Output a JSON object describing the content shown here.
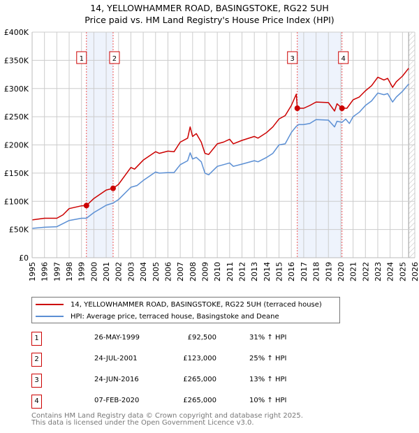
{
  "title_line1": "14, YELLOWHAMMER ROAD, BASINGSTOKE, RG22 5UH",
  "title_line2": "Price paid vs. HM Land Registry's House Price Index (HPI)",
  "colors": {
    "price": "#cc0000",
    "hpi": "#5b8fd4",
    "shade": "#eef3fc",
    "grid": "#cccccc"
  },
  "chart_data": {
    "type": "line",
    "title": "Price paid vs. HM Land Registry's House Price Index (HPI)",
    "xlim": [
      1995,
      2026
    ],
    "ylim": [
      0,
      400000
    ],
    "grid": true,
    "y_ticks": [
      "£0",
      "£50K",
      "£100K",
      "£150K",
      "£200K",
      "£250K",
      "£300K",
      "£350K",
      "£400K"
    ],
    "x_ticks": [
      "1995",
      "1996",
      "1997",
      "1998",
      "1999",
      "2000",
      "2001",
      "2002",
      "2003",
      "2004",
      "2005",
      "2006",
      "2007",
      "2008",
      "2009",
      "2010",
      "2011",
      "2012",
      "2013",
      "2014",
      "2015",
      "2016",
      "2017",
      "2018",
      "2019",
      "2020",
      "2021",
      "2022",
      "2023",
      "2024",
      "2025",
      "2026"
    ],
    "series": [
      {
        "name": "14, YELLOWHAMMER ROAD, BASINGSTOKE, RG22 5UH (terraced house)",
        "x": [
          1995,
          1996,
          1997,
          1997.5,
          1998,
          1999,
          1999.4,
          2000,
          2001,
          2001.56,
          2002,
          2003,
          2003.3,
          2004,
          2005,
          2005.3,
          2006,
          2006.5,
          2007,
          2007.6,
          2007.8,
          2008,
          2008.3,
          2008.7,
          2009,
          2009.3,
          2010,
          2010.5,
          2011,
          2011.3,
          2012,
          2013,
          2013.3,
          2014,
          2014.5,
          2015,
          2015.5,
          2016,
          2016.4,
          2016.48,
          2017,
          2017.5,
          2018,
          2019,
          2019.5,
          2019.7,
          2020.1,
          2020.5,
          2021,
          2021.5,
          2022,
          2022.5,
          2023,
          2023.5,
          2023.8,
          2024.2,
          2024.5,
          2025,
          2025.5
        ],
        "y": [
          67,
          70,
          70,
          76,
          87,
          92,
          92.5,
          105,
          120,
          123,
          130,
          160,
          157,
          173,
          188,
          185,
          189,
          188,
          205,
          212,
          232,
          215,
          220,
          205,
          185,
          183,
          202,
          205,
          210,
          202,
          208,
          215,
          212,
          222,
          232,
          246,
          252,
          270,
          290,
          265,
          265,
          270,
          276,
          275,
          260,
          273,
          265,
          265,
          280,
          285,
          296,
          305,
          320,
          315,
          318,
          302,
          312,
          322,
          336
        ]
      },
      {
        "name": "HPI: Average price, terraced house, Basingstoke and Deane",
        "x": [
          1995,
          1996,
          1997,
          1998,
          1999,
          1999.4,
          2000,
          2001,
          2001.56,
          2002,
          2003,
          2003.5,
          2004,
          2005,
          2005.3,
          2006,
          2006.5,
          2007,
          2007.6,
          2007.8,
          2008,
          2008.3,
          2008.7,
          2009,
          2009.3,
          2010,
          2010.5,
          2011,
          2011.3,
          2012,
          2013,
          2013.3,
          2014,
          2014.5,
          2015,
          2015.5,
          2016,
          2016.4,
          2016.6,
          2017,
          2017.5,
          2018,
          2019,
          2019.5,
          2019.7,
          2020.1,
          2020.4,
          2020.7,
          2021,
          2021.5,
          2022,
          2022.5,
          2023,
          2023.5,
          2023.8,
          2024.2,
          2024.5,
          2025,
          2025.5
        ],
        "y": [
          52,
          54,
          55,
          66,
          70,
          70,
          80,
          93,
          97,
          103,
          125,
          128,
          137,
          152,
          150,
          151,
          151,
          165,
          172,
          186,
          175,
          178,
          170,
          150,
          147,
          162,
          165,
          168,
          162,
          166,
          172,
          170,
          178,
          185,
          200,
          202,
          222,
          233,
          236,
          236,
          238,
          245,
          244,
          232,
          242,
          240,
          246,
          238,
          250,
          258,
          270,
          278,
          292,
          289,
          291,
          276,
          285,
          295,
          308
        ]
      }
    ],
    "sales": [
      {
        "label": "1",
        "x": 1999.4,
        "y": 92.5
      },
      {
        "label": "2",
        "x": 2001.56,
        "y": 123
      },
      {
        "label": "3",
        "x": 2016.48,
        "y": 265
      },
      {
        "label": "4",
        "x": 2020.1,
        "y": 265
      }
    ],
    "shaded_ranges": [
      [
        1999.4,
        2001.56
      ],
      [
        2016.48,
        2020.1
      ]
    ],
    "y_units": "thousand GBP",
    "legend_placement": "below"
  },
  "legend": {
    "price_label": "14, YELLOWHAMMER ROAD, BASINGSTOKE, RG22 5UH (terraced house)",
    "hpi_label": "HPI: Average price, terraced house, Basingstoke and Deane"
  },
  "transactions": [
    {
      "num": "1",
      "date": "26-MAY-1999",
      "price": "£92,500",
      "hpi": "31% ↑ HPI"
    },
    {
      "num": "2",
      "date": "24-JUL-2001",
      "price": "£123,000",
      "hpi": "25% ↑ HPI"
    },
    {
      "num": "3",
      "date": "24-JUN-2016",
      "price": "£265,000",
      "hpi": "13% ↑ HPI"
    },
    {
      "num": "4",
      "date": "07-FEB-2020",
      "price": "£265,000",
      "hpi": "10% ↑ HPI"
    }
  ],
  "footer": {
    "line1": "Contains HM Land Registry data © Crown copyright and database right 2025.",
    "line2": "This data is licensed under the Open Government Licence v3.0."
  }
}
